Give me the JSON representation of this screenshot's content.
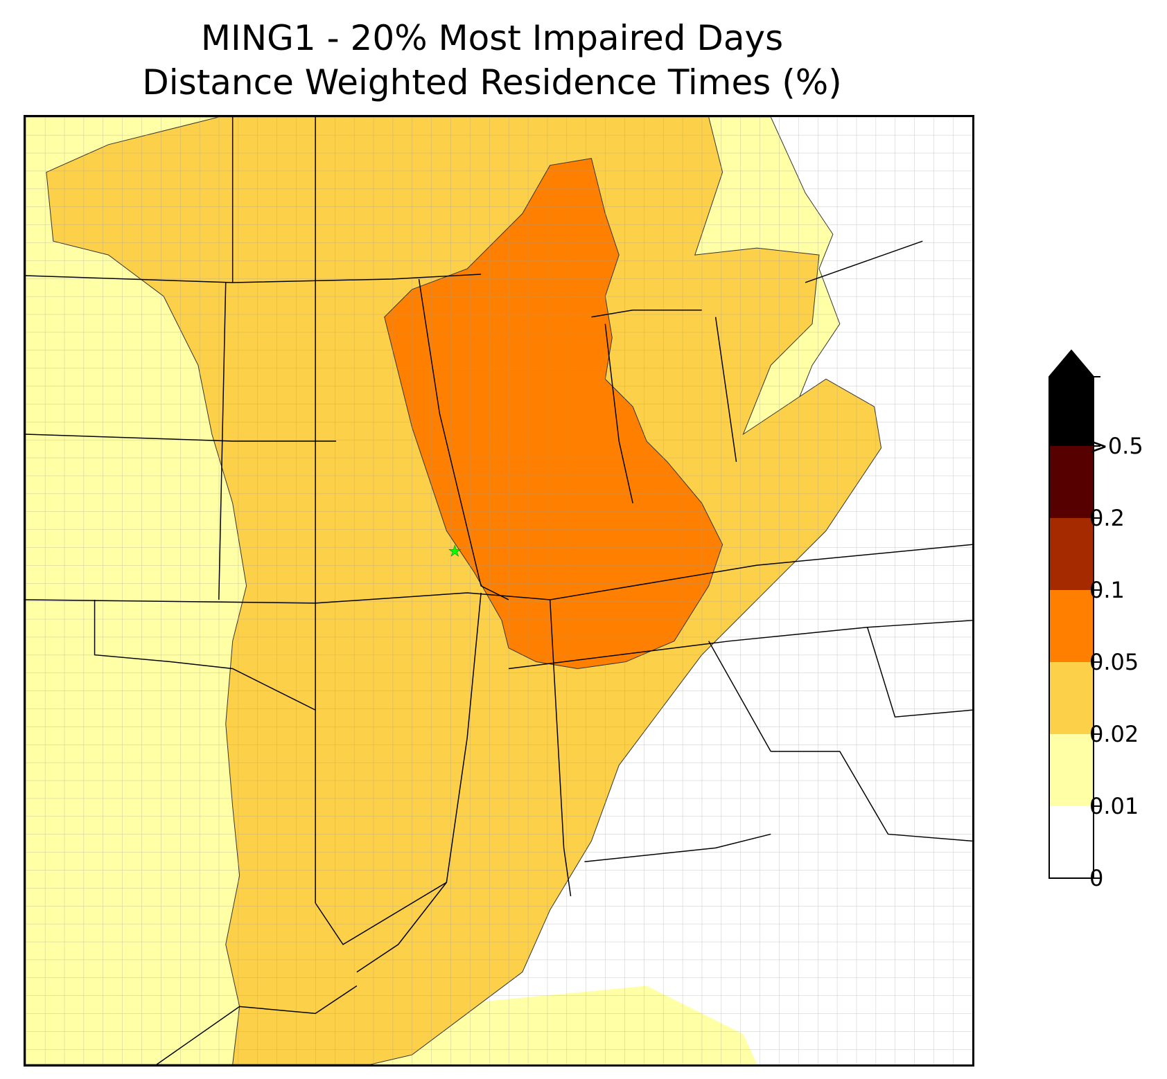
{
  "title": {
    "line1": "MING1 - 20% Most Impaired Days",
    "line2": "Distance Weighted Residence Times (%)"
  },
  "legend": {
    "bins": [
      {
        "label": "0",
        "value": 0,
        "color": "#ffffff"
      },
      {
        "label": "0.01",
        "value": 0.01,
        "color": "#ffffa6"
      },
      {
        "label": "0.02",
        "value": 0.02,
        "color": "#fdd04a"
      },
      {
        "label": "0.05",
        "value": 0.05,
        "color": "#ff8000"
      },
      {
        "label": "0.1",
        "value": 0.1,
        "color": "#a52a00"
      },
      {
        "label": "0.2",
        "value": 0.2,
        "color": "#560000"
      },
      {
        "label": ">0.5",
        "value": 0.5,
        "color": "#000000"
      }
    ],
    "extend": "max",
    "placement": "right"
  },
  "site_marker": {
    "symbol": "star",
    "color": "#00ff00"
  },
  "map": {
    "basemap": "US states and counties",
    "state_line_color": "#000000",
    "county_line_color": "#999999"
  }
}
